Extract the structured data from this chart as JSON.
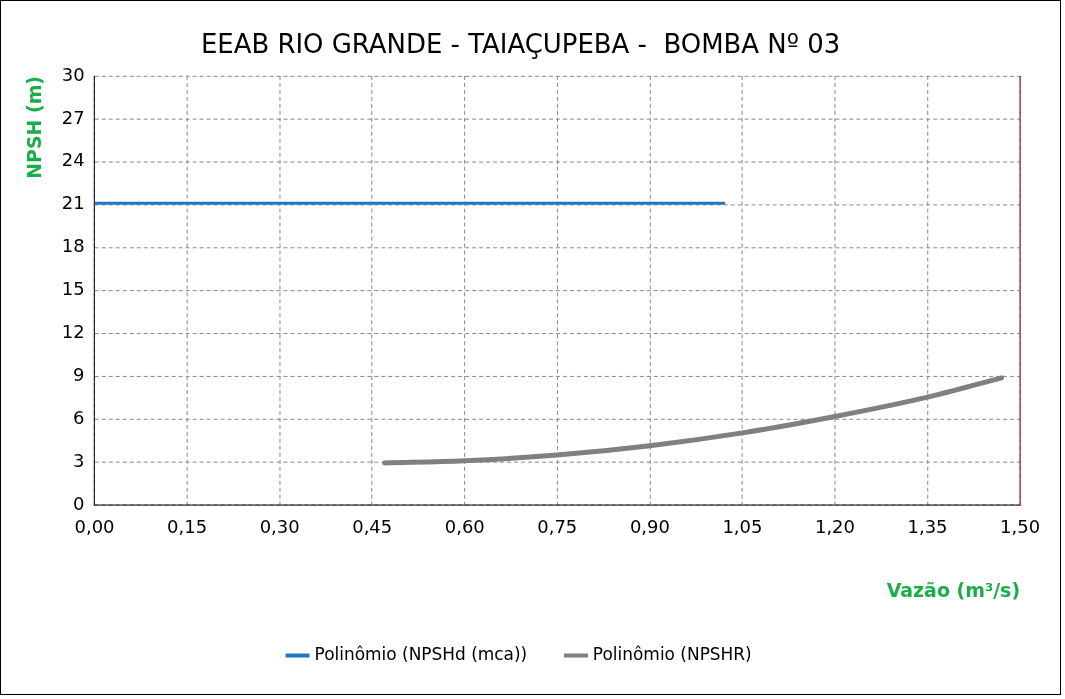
{
  "chart_data": {
    "type": "line",
    "title": "EEAB RIO GRANDE - TAIAÇUPEBA -  BOMBA Nº 03",
    "xlabel": "Vazão (m³/s)",
    "ylabel": "NPSH (m)",
    "xlim": [
      0,
      1.5
    ],
    "xticks": [
      {
        "value": 0,
        "label": "0,00"
      },
      {
        "value": 0.15,
        "label": "0,15"
      },
      {
        "value": 0.3,
        "label": "0,30"
      },
      {
        "value": 0.45,
        "label": "0,45"
      },
      {
        "value": 0.6,
        "label": "0,60"
      },
      {
        "value": 0.75,
        "label": "0,75"
      },
      {
        "value": 0.9,
        "label": "0,90"
      },
      {
        "value": 1.05,
        "label": "1,05"
      },
      {
        "value": 1.2,
        "label": "1,20"
      },
      {
        "value": 1.35,
        "label": "1,35"
      },
      {
        "value": 1.5,
        "label": "1,50"
      }
    ],
    "ylim": [
      0,
      30
    ],
    "yticks": [
      0,
      3,
      6,
      9,
      12,
      15,
      18,
      21,
      24,
      27,
      30
    ],
    "grid": true,
    "legend": "bottom",
    "marker": "none",
    "line_style": "solid",
    "series": [
      {
        "name": "Polinômio (NPSHd (mca))",
        "color": "#1f77c4",
        "x": [
          0,
          1.02
        ],
        "values": [
          21.1,
          21.1
        ]
      },
      {
        "name": "Polinômio (NPSHR)",
        "color": "#808080",
        "x": [
          0.47,
          0.6,
          0.75,
          0.9,
          1.05,
          1.2,
          1.35,
          1.47
        ],
        "values": [
          2.95,
          3.1,
          3.5,
          4.15,
          5.05,
          6.2,
          7.55,
          8.9
        ]
      }
    ]
  }
}
